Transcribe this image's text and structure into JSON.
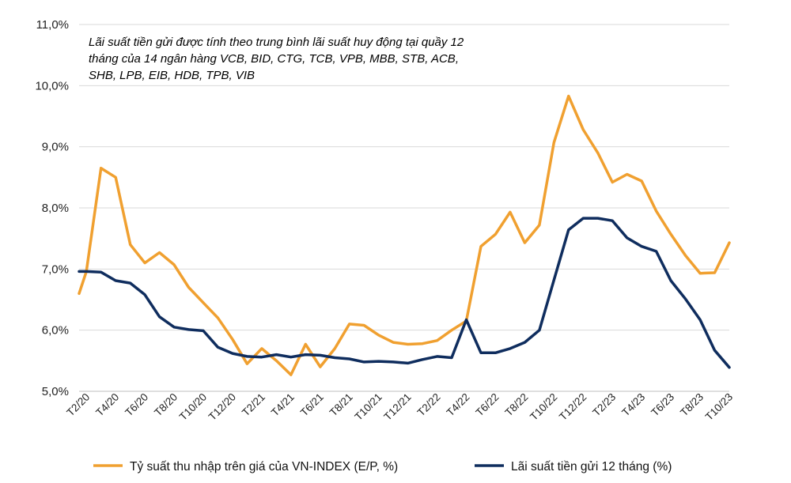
{
  "chart_data": {
    "type": "line",
    "title": "",
    "xlabel": "",
    "ylabel": "",
    "ylim": [
      5.0,
      11.0
    ],
    "y_ticks": [
      "5,0%",
      "6,0%",
      "7,0%",
      "8,0%",
      "9,0%",
      "10,0%",
      "11,0%"
    ],
    "y_tick_values": [
      5,
      6,
      7,
      8,
      9,
      10,
      11
    ],
    "grid": true,
    "legend_position": "bottom",
    "x_tick_labels": [
      "T2/20",
      "T4/20",
      "T6/20",
      "T8/20",
      "T10/20",
      "T12/20",
      "T2/21",
      "T4/21",
      "T6/21",
      "T8/21",
      "T10/21",
      "T12/21",
      "T2/22",
      "T4/22",
      "T6/22",
      "T8/22",
      "T10/22",
      "T12/22",
      "T2/23",
      "T4/23",
      "T6/23",
      "T8/23",
      "T10/23"
    ],
    "annotation_lines": [
      "Lãi suất tiền gửi được tính theo trung bình lãi suất huy động tại quầy 12",
      "tháng của 14 ngân hàng VCB, BID, CTG, TCB, VPB, MBB, STB, ACB,",
      "SHB, LPB, EIB, HDB, TPB, VIB"
    ],
    "x_index": [
      0,
      0.5,
      1.5,
      2.5,
      3.5,
      4.5,
      5.5,
      6.5,
      7.5,
      8.5,
      9.5,
      10.5,
      11.5,
      12.5,
      13.5,
      14.5,
      15.5,
      16.5,
      17.5,
      18.5,
      19.5,
      20.5,
      21.5,
      22.5,
      23.5,
      24.5,
      25.5,
      26.5,
      27.5,
      28.5,
      29.5,
      30.5,
      31.5,
      32.5,
      33.5,
      34.5,
      35.5,
      36.5,
      37.5,
      38.5,
      39.5,
      40.5,
      41.5,
      42.5,
      43.5,
      44.5
    ],
    "series": [
      {
        "name": "Tỷ suất thu nhập trên giá của VN-INDEX (E/P, %)",
        "color": "#f0a030",
        "values": [
          6.6,
          6.96,
          8.65,
          8.5,
          7.4,
          7.1,
          7.27,
          7.07,
          6.7,
          6.45,
          6.2,
          5.85,
          5.45,
          5.7,
          5.5,
          5.27,
          5.77,
          5.4,
          5.7,
          6.1,
          6.08,
          5.92,
          5.8,
          5.77,
          5.78,
          5.83,
          6.0,
          6.15,
          7.37,
          7.57,
          7.93,
          7.43,
          7.72,
          9.07,
          9.83,
          9.28,
          8.9,
          8.42,
          8.55,
          8.44,
          7.95,
          7.57,
          7.22,
          6.93,
          6.94,
          7.43
        ]
      },
      {
        "name": "Lãi suất tiền gửi 12 tháng (%)",
        "color": "#0f2d5e",
        "values": [
          6.96,
          6.96,
          6.95,
          6.81,
          6.77,
          6.58,
          6.22,
          6.05,
          6.01,
          5.99,
          5.72,
          5.62,
          5.57,
          5.56,
          5.6,
          5.56,
          5.6,
          5.59,
          5.55,
          5.53,
          5.48,
          5.49,
          5.48,
          5.46,
          5.52,
          5.57,
          5.55,
          6.17,
          5.63,
          5.63,
          5.7,
          5.8,
          6.0,
          6.82,
          7.64,
          7.83,
          7.83,
          7.79,
          7.51,
          7.37,
          7.29,
          6.81,
          6.51,
          6.17,
          5.67,
          5.39
        ]
      }
    ]
  }
}
